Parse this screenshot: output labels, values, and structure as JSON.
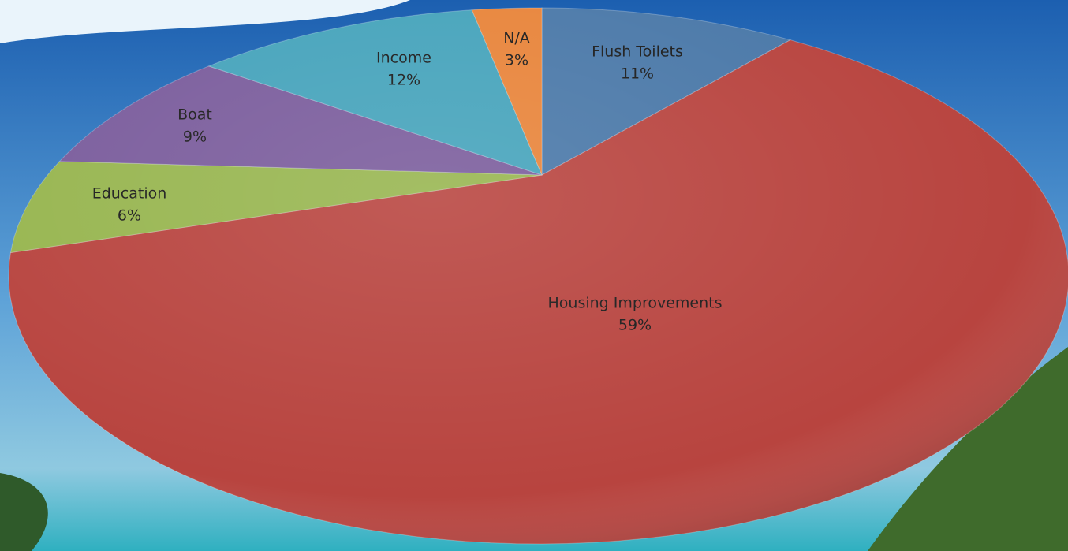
{
  "chart_data": {
    "type": "pie",
    "categories": [
      "Flush Toilets",
      "Housing Improvements",
      "Education",
      "Boat",
      "Income",
      "N/A"
    ],
    "values": [
      11,
      59,
      6,
      9,
      12,
      3
    ],
    "value_labels": [
      "11%",
      "59%",
      "6%",
      "9%",
      "12%",
      "3%"
    ],
    "colors": [
      "#4a78a8",
      "#b8443f",
      "#97b54f",
      "#7a5c9c",
      "#45a3bb",
      "#e8843a"
    ]
  }
}
